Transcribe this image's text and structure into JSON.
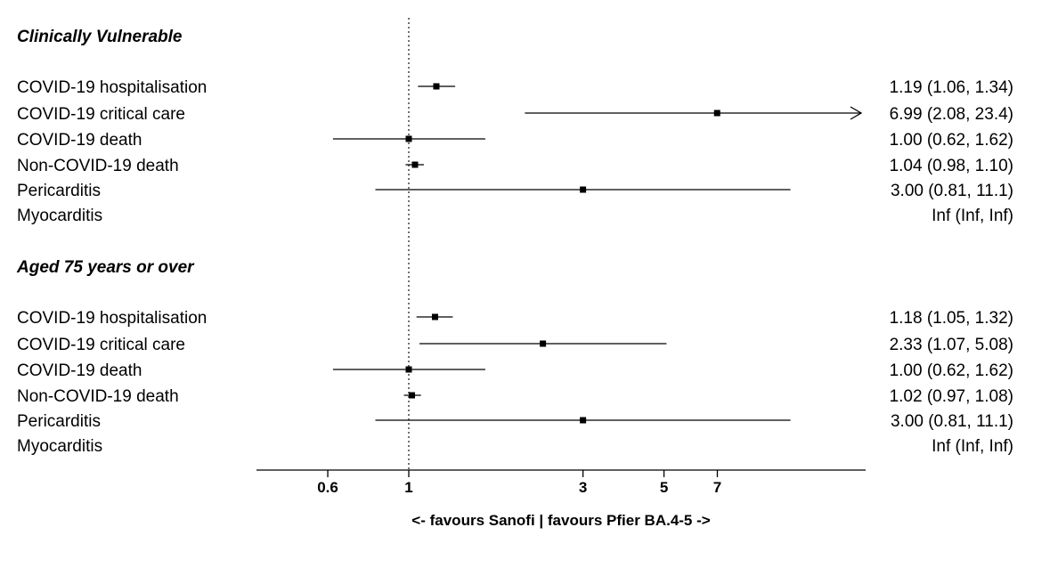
{
  "chart_data": {
    "type": "forest",
    "x_scale": "log",
    "xlim": [
      0.5,
      8
    ],
    "xticks": [
      0.6,
      1,
      3,
      5,
      7
    ],
    "xtick_labels": [
      "0.6",
      "1",
      "3",
      "5",
      "7"
    ],
    "reference_line": 1,
    "xlabel": "<- favours Sanofi | favours Pfier BA.4-5 ->",
    "groups": [
      {
        "title": "Clinically Vulnerable",
        "rows": [
          {
            "label": "COVID-19 hospitalisation",
            "estimate": 1.19,
            "lower": 1.06,
            "upper": 1.34,
            "text": "1.19 (1.06, 1.34)"
          },
          {
            "label": "COVID-19 critical care",
            "estimate": 6.99,
            "lower": 2.08,
            "upper": 23.4,
            "text": "6.99 (2.08, 23.4)"
          },
          {
            "label": "COVID-19 death",
            "estimate": 1.0,
            "lower": 0.62,
            "upper": 1.62,
            "text": "1.00 (0.62, 1.62)"
          },
          {
            "label": "Non-COVID-19 death",
            "estimate": 1.04,
            "lower": 0.98,
            "upper": 1.1,
            "text": "1.04 (0.98, 1.10)"
          },
          {
            "label": "Pericarditis",
            "estimate": 3.0,
            "lower": 0.81,
            "upper": 11.1,
            "text": "3.00 (0.81, 11.1)"
          },
          {
            "label": "Myocarditis",
            "estimate": null,
            "lower": null,
            "upper": null,
            "text": "Inf (Inf, Inf)"
          }
        ]
      },
      {
        "title": "Aged 75 years or over",
        "rows": [
          {
            "label": "COVID-19 hospitalisation",
            "estimate": 1.18,
            "lower": 1.05,
            "upper": 1.32,
            "text": "1.18 (1.05, 1.32)"
          },
          {
            "label": "COVID-19 critical care",
            "estimate": 2.33,
            "lower": 1.07,
            "upper": 5.08,
            "text": "2.33 (1.07, 5.08)"
          },
          {
            "label": "COVID-19 death",
            "estimate": 1.0,
            "lower": 0.62,
            "upper": 1.62,
            "text": "1.00 (0.62, 1.62)"
          },
          {
            "label": "Non-COVID-19 death",
            "estimate": 1.02,
            "lower": 0.97,
            "upper": 1.08,
            "text": "1.02 (0.97, 1.08)"
          },
          {
            "label": "Pericarditis",
            "estimate": 3.0,
            "lower": 0.81,
            "upper": 11.1,
            "text": "3.00 (0.81, 11.1)"
          },
          {
            "label": "Myocarditis",
            "estimate": null,
            "lower": null,
            "upper": null,
            "text": "Inf (Inf, Inf)"
          }
        ]
      }
    ]
  }
}
